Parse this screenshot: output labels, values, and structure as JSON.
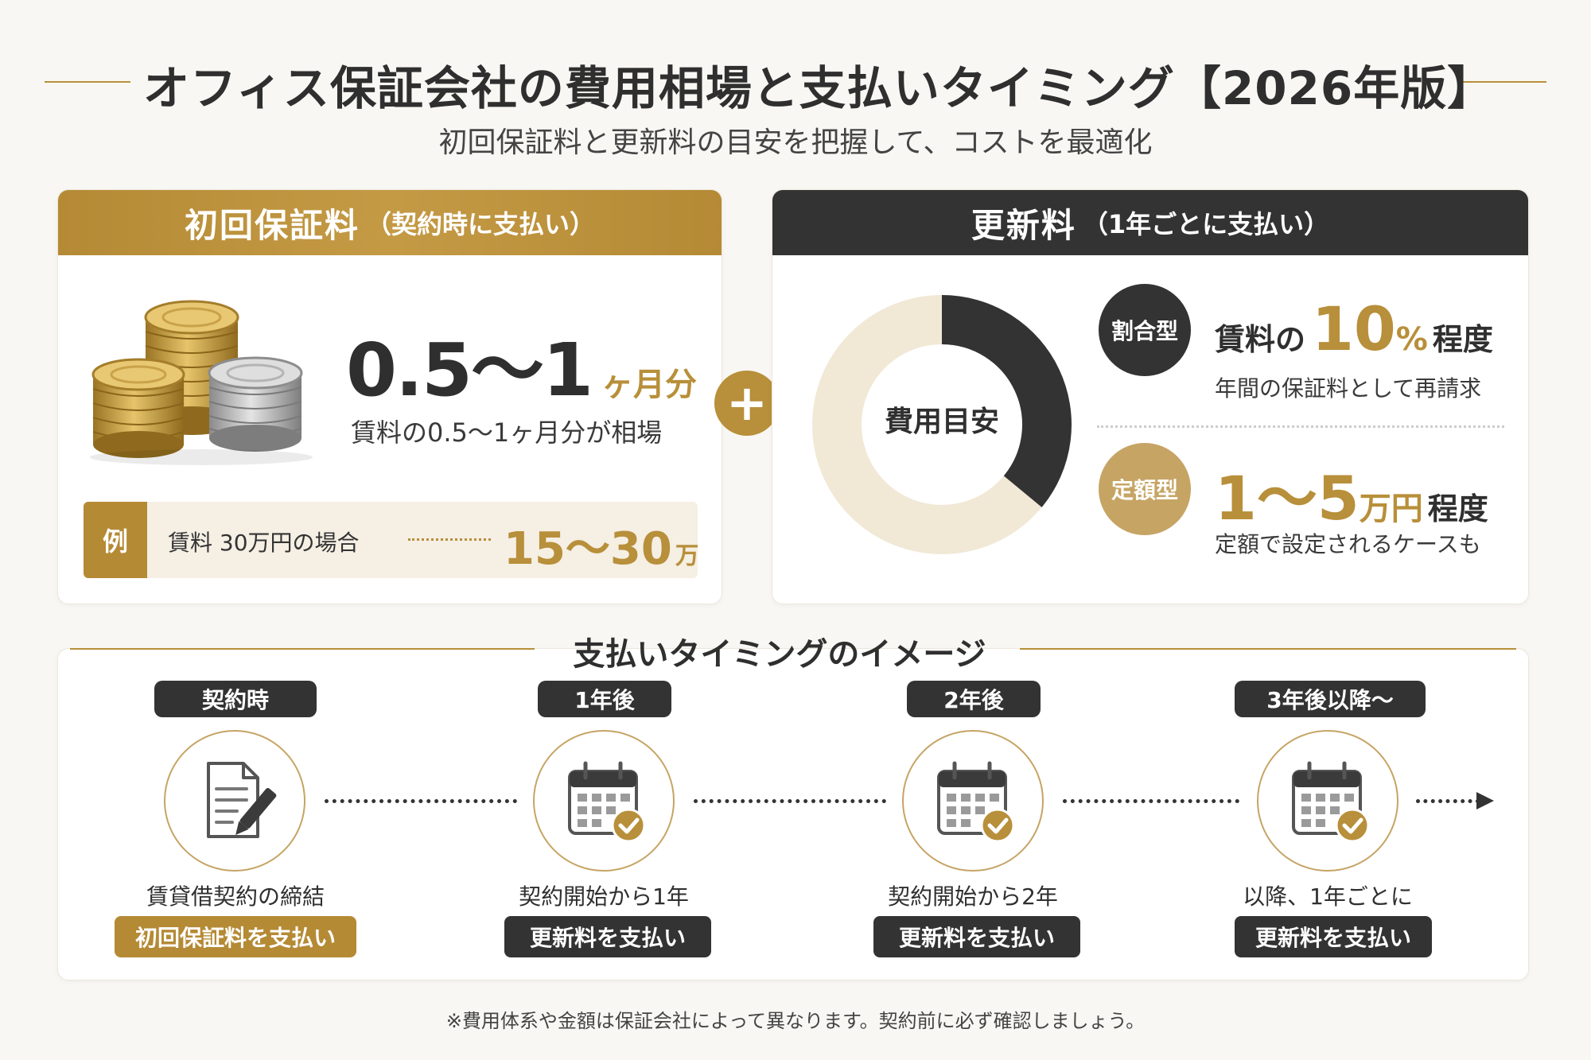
{
  "header": {
    "title": "オフィス保証会社の費用相場と支払いタイミング【2026年版】",
    "subtitle": "初回保証料と更新料の目安を把握して、コストを最適化"
  },
  "initial_fee": {
    "heading": "初回保証料",
    "heading_note": "（契約時に支払い）",
    "range": "0.5～1",
    "range_unit": "ヶ月分",
    "description": "賃料の0.5～1ヶ月分が相場",
    "example": {
      "tag": "例",
      "label": "賃料 30万円の場合",
      "value": "15～30",
      "unit": "万円"
    }
  },
  "plus_sign": "+",
  "renewal_fee": {
    "heading": "更新料",
    "heading_note": "（1年ごとに支払い）",
    "donut_label": "費用目安",
    "donut_dark_fraction": 0.36,
    "types": [
      {
        "badge": "割合型",
        "prefix": "賃料の",
        "value": "10",
        "unit": "%",
        "suffix": "程度",
        "description": "年間の保証料として再請求"
      },
      {
        "badge": "定額型",
        "prefix": "",
        "value": "1～5",
        "unit": "万円",
        "suffix": "程度",
        "description": "定額で設定されるケースも"
      }
    ]
  },
  "timeline": {
    "title": "支払いタイミングのイメージ",
    "steps": [
      {
        "label": "契約時",
        "icon": "document-pen-icon",
        "caption": "賃貸借契約の締結",
        "action": "初回保証料を支払い"
      },
      {
        "label": "1年後",
        "icon": "calendar-check-icon",
        "caption": "契約開始から1年",
        "action": "更新料を支払い"
      },
      {
        "label": "2年後",
        "icon": "calendar-check-icon",
        "caption": "契約開始から2年",
        "action": "更新料を支払い"
      },
      {
        "label": "3年後以降～",
        "icon": "calendar-check-icon",
        "caption": "以降、1年ごとに",
        "action": "更新料を支払い"
      }
    ]
  },
  "footnote": "※費用体系や金額は保証会社によって異なります。契約前に必ず確認しましょう。",
  "colors": {
    "gold": "#b88f3a",
    "dark": "#333333",
    "cream": "#f3ebdb",
    "background": "#f8f7f3"
  }
}
